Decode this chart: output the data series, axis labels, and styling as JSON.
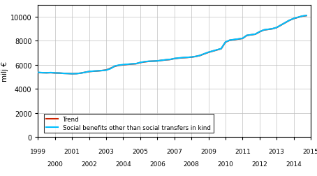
{
  "ylabel": "milj €",
  "xlim": [
    1999.0,
    2015.0
  ],
  "ylim": [
    0,
    11000
  ],
  "yticks": [
    0,
    2000,
    4000,
    6000,
    8000,
    10000
  ],
  "odd_xticks": [
    1999,
    2001,
    2003,
    2005,
    2007,
    2009,
    2011,
    2013,
    2015
  ],
  "even_xticks": [
    2000,
    2002,
    2004,
    2006,
    2008,
    2010,
    2012,
    2014
  ],
  "series_color": "#00bfff",
  "trend_color": "#cc2200",
  "legend_series": "Social benefits other than social transfers in kind",
  "legend_trend": "Trend",
  "series_data_x": [
    1999.0,
    1999.25,
    1999.5,
    1999.75,
    2000.0,
    2000.25,
    2000.5,
    2000.75,
    2001.0,
    2001.25,
    2001.5,
    2001.75,
    2002.0,
    2002.25,
    2002.5,
    2002.75,
    2003.0,
    2003.25,
    2003.5,
    2003.75,
    2004.0,
    2004.25,
    2004.5,
    2004.75,
    2005.0,
    2005.25,
    2005.5,
    2005.75,
    2006.0,
    2006.25,
    2006.5,
    2006.75,
    2007.0,
    2007.25,
    2007.5,
    2007.75,
    2008.0,
    2008.25,
    2008.5,
    2008.75,
    2009.0,
    2009.25,
    2009.5,
    2009.75,
    2010.0,
    2010.25,
    2010.5,
    2010.75,
    2011.0,
    2011.25,
    2011.5,
    2011.75,
    2012.0,
    2012.25,
    2012.5,
    2012.75,
    2013.0,
    2013.25,
    2013.5,
    2013.75,
    2014.0,
    2014.25,
    2014.5,
    2014.75
  ],
  "series_data_y": [
    5380,
    5350,
    5340,
    5360,
    5330,
    5320,
    5290,
    5280,
    5260,
    5270,
    5310,
    5380,
    5450,
    5480,
    5500,
    5530,
    5560,
    5680,
    5900,
    5980,
    6020,
    6050,
    6080,
    6100,
    6200,
    6260,
    6300,
    6310,
    6330,
    6380,
    6420,
    6450,
    6530,
    6570,
    6600,
    6620,
    6650,
    6700,
    6780,
    6920,
    7050,
    7150,
    7250,
    7350,
    7900,
    8050,
    8100,
    8150,
    8200,
    8450,
    8500,
    8550,
    8750,
    8900,
    8950,
    9000,
    9100,
    9300,
    9500,
    9700,
    9850,
    9950,
    10050,
    10100
  ],
  "trend_data_x": [
    1999.0,
    1999.25,
    1999.5,
    1999.75,
    2000.0,
    2000.25,
    2000.5,
    2000.75,
    2001.0,
    2001.25,
    2001.5,
    2001.75,
    2002.0,
    2002.25,
    2002.5,
    2002.75,
    2003.0,
    2003.25,
    2003.5,
    2003.75,
    2004.0,
    2004.25,
    2004.5,
    2004.75,
    2005.0,
    2005.25,
    2005.5,
    2005.75,
    2006.0,
    2006.25,
    2006.5,
    2006.75,
    2007.0,
    2007.25,
    2007.5,
    2007.75,
    2008.0,
    2008.25,
    2008.5,
    2008.75,
    2009.0,
    2009.25,
    2009.5,
    2009.75,
    2010.0,
    2010.25,
    2010.5,
    2010.75,
    2011.0,
    2011.25,
    2011.5,
    2011.75,
    2012.0,
    2012.25,
    2012.5,
    2012.75,
    2013.0,
    2013.25,
    2013.5,
    2013.75,
    2014.0,
    2014.25,
    2014.5,
    2014.75
  ],
  "trend_data_y": [
    5360,
    5345,
    5338,
    5348,
    5325,
    5318,
    5295,
    5282,
    5265,
    5275,
    5312,
    5378,
    5442,
    5472,
    5495,
    5525,
    5572,
    5715,
    5878,
    5958,
    5998,
    6038,
    6068,
    6092,
    6188,
    6248,
    6288,
    6306,
    6322,
    6372,
    6412,
    6442,
    6518,
    6558,
    6590,
    6612,
    6642,
    6695,
    6772,
    6908,
    7038,
    7138,
    7238,
    7338,
    7888,
    8038,
    8088,
    8138,
    8192,
    8438,
    8492,
    8542,
    8738,
    8892,
    8942,
    8992,
    9092,
    9292,
    9492,
    9692,
    9838,
    9938,
    10038,
    10088
  ]
}
